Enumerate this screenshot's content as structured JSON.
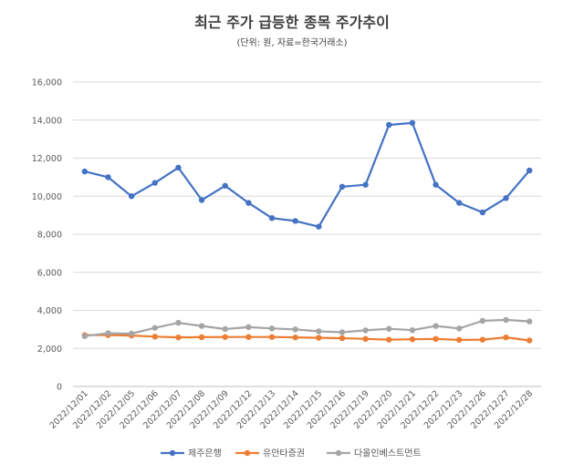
{
  "chart_data": {
    "type": "line",
    "title": "최근 주가 급등한 종목 주가추이",
    "subtitle": "(단위: 원, 자료=한국거래소)",
    "xlabel": "",
    "ylabel": "",
    "ylim": [
      0,
      16000
    ],
    "yticks": [
      0,
      2000,
      4000,
      6000,
      8000,
      10000,
      12000,
      14000,
      16000
    ],
    "ytick_labels": [
      "0",
      "2,000",
      "4,000",
      "6,000",
      "8,000",
      "10,000",
      "12,000",
      "14,000",
      "16,000"
    ],
    "grid": true,
    "legend_position": "bottom-center",
    "categories": [
      "2022/12/01",
      "2022/12/02",
      "2022/12/05",
      "2022/12/06",
      "2022/12/07",
      "2022/12/08",
      "2022/12/09",
      "2022/12/12",
      "2022/12/13",
      "2022/12/14",
      "2022/12/15",
      "2022/12/16",
      "2022/12/19",
      "2022/12/20",
      "2022/12/21",
      "2022/12/22",
      "2022/12/23",
      "2022/12/26",
      "2022/12/27",
      "2022/12/28"
    ],
    "series": [
      {
        "name": "제주은행",
        "color": "#4472C4",
        "values": [
          11300,
          11000,
          10000,
          10700,
          11500,
          9800,
          10550,
          9650,
          8850,
          8700,
          8400,
          10500,
          10600,
          13750,
          13850,
          10600,
          9650,
          9150,
          9900,
          11350
        ]
      },
      {
        "name": "유안타증권",
        "color": "#ED7D31",
        "values": [
          2700,
          2700,
          2680,
          2620,
          2580,
          2590,
          2600,
          2600,
          2600,
          2580,
          2560,
          2540,
          2500,
          2460,
          2480,
          2500,
          2450,
          2460,
          2580,
          2420
        ]
      },
      {
        "name": "다올인베스트먼트",
        "color": "#A5A5A5",
        "values": [
          2650,
          2800,
          2780,
          3080,
          3350,
          3180,
          3020,
          3120,
          3050,
          3000,
          2900,
          2850,
          2950,
          3030,
          2960,
          3180,
          3050,
          3450,
          3500,
          3420
        ]
      }
    ]
  }
}
